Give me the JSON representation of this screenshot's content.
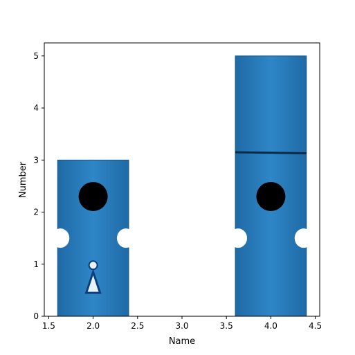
{
  "chart_data": {
    "type": "bar",
    "title": "",
    "xlabel": "Name",
    "ylabel": "Number",
    "xlim": [
      1.45,
      4.55
    ],
    "ylim": [
      0,
      5.25
    ],
    "grid": false,
    "x_ticks": [
      {
        "value": 1.5,
        "label": "1.5"
      },
      {
        "value": 2.0,
        "label": "2.0"
      },
      {
        "value": 2.5,
        "label": "2.5"
      },
      {
        "value": 3.0,
        "label": "3.0"
      },
      {
        "value": 3.5,
        "label": "3.5"
      },
      {
        "value": 4.0,
        "label": "4.0"
      },
      {
        "value": 4.5,
        "label": "4.5"
      }
    ],
    "y_ticks": [
      {
        "value": 0,
        "label": "0"
      },
      {
        "value": 1,
        "label": "1"
      },
      {
        "value": 2,
        "label": "2"
      },
      {
        "value": 3,
        "label": "3"
      },
      {
        "value": 4,
        "label": "4"
      },
      {
        "value": 5,
        "label": "5"
      }
    ],
    "bar_width": 0.8,
    "x": [
      2,
      4
    ],
    "values": [
      3,
      5
    ],
    "colors": {
      "bar_fill": "#2f86c6",
      "bar_fill_dark": "#1f6aa6",
      "bar_edge": "#145a8c",
      "hole": "#000000",
      "axis": "#000000"
    }
  }
}
